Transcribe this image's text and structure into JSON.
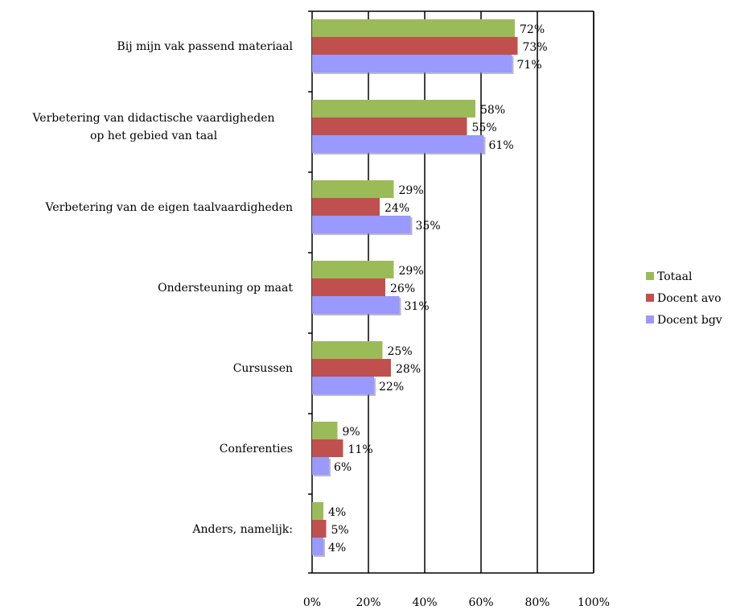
{
  "chart_data": {
    "type": "bar",
    "orientation": "horizontal",
    "categories": [
      [
        "Bij mijn vak passend materiaal"
      ],
      [
        "Verbetering van didactische vaardigheden",
        "op het gebied van taal"
      ],
      [
        "Verbetering van de eigen taalvaardigheden"
      ],
      [
        "Ondersteuning op maat"
      ],
      [
        "Cursussen"
      ],
      [
        "Conferenties"
      ],
      [
        "Anders, namelijk:"
      ]
    ],
    "series": [
      {
        "name": "Totaal",
        "values": [
          72,
          58,
          29,
          29,
          25,
          9,
          4
        ],
        "labels": [
          "72%",
          "58%",
          "29%",
          "29%",
          "25%",
          "9%",
          "4%"
        ]
      },
      {
        "name": "Docent avo",
        "values": [
          73,
          55,
          24,
          26,
          28,
          11,
          5
        ],
        "labels": [
          "73%",
          "55%",
          "24%",
          "26%",
          "28%",
          "11%",
          "5%"
        ]
      },
      {
        "name": "Docent bgv",
        "values": [
          71,
          61,
          35,
          31,
          22,
          6,
          4
        ],
        "labels": [
          "71%",
          "61%",
          "35%",
          "31%",
          "22%",
          "6%",
          "4%"
        ]
      }
    ],
    "xlim": [
      0,
      100
    ],
    "x_ticks": [
      "0%",
      "20%",
      "40%",
      "60%",
      "80%",
      "100%"
    ],
    "grid": true,
    "legend_position": "right",
    "title": "",
    "xlabel": "",
    "ylabel": ""
  },
  "colors": {
    "series": [
      "#9bbb59",
      "#c0504d",
      "#9999ff"
    ],
    "grid": "#000000"
  }
}
